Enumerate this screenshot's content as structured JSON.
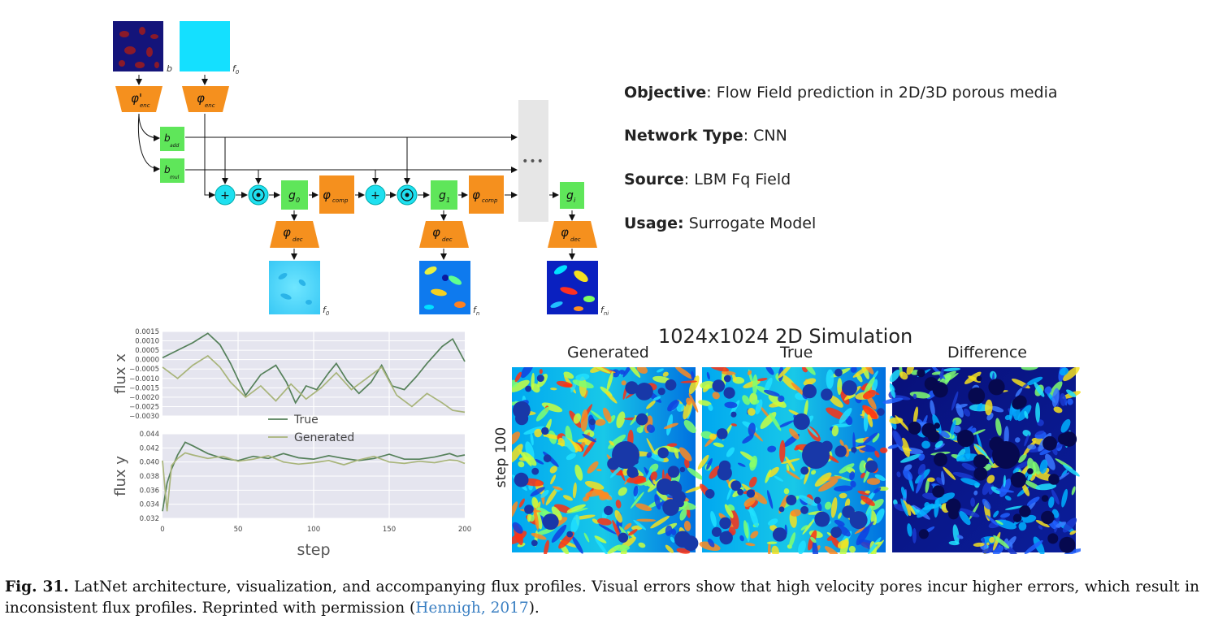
{
  "architecture": {
    "input_b_label": "b",
    "input_f0_label": "f",
    "input_f0_sub": "0",
    "encoders": [
      {
        "symbol": "φ'",
        "sub": "enc"
      },
      {
        "symbol": "φ",
        "sub": "enc"
      }
    ],
    "b_blocks": [
      {
        "symbol": "b",
        "sub": "add"
      },
      {
        "symbol": "b",
        "sub": "mul"
      }
    ],
    "g_blocks": [
      {
        "symbol": "g",
        "sub": "0"
      },
      {
        "symbol": "g",
        "sub": "1"
      },
      {
        "symbol": "g",
        "sub": "i"
      }
    ],
    "comp_blocks": [
      {
        "symbol": "φ",
        "sub": "comp"
      },
      {
        "symbol": "φ",
        "sub": "comp"
      }
    ],
    "decoders": [
      {
        "symbol": "φ",
        "sub": "dec"
      },
      {
        "symbol": "φ",
        "sub": "dec"
      },
      {
        "symbol": "φ",
        "sub": "dec"
      }
    ],
    "outputs": [
      {
        "symbol": "f",
        "sub": "0"
      },
      {
        "symbol": "f",
        "sub": "n"
      },
      {
        "symbol": "f",
        "sub": "ni"
      }
    ],
    "plus_symbol": "+",
    "mul_symbol": "⊙",
    "ellipsis": "•••",
    "colors": {
      "encoder": "#f5901e",
      "block": "#5fe65a",
      "circle": "#1ee0f0",
      "gray_panel": "#e6e6e6"
    }
  },
  "info": {
    "objective_label": "Objective",
    "objective_value": ": Flow Field prediction in 2D/3D porous media",
    "network_label": "Network Type",
    "network_value": ": CNN",
    "source_label": "Source",
    "source_value": ": LBM Fq Field",
    "usage_label": "Usage:",
    "usage_value": " Surrogate Model"
  },
  "chart_data": [
    {
      "type": "line",
      "ylabel": "flux x",
      "ylim": [
        -0.003,
        0.0015
      ],
      "yticks": [
        "0.0015",
        "0.0010",
        "0.0005",
        "0.0000",
        "−0.0005",
        "−0.0010",
        "−0.0015",
        "−0.0020",
        "−0.0025",
        "−0.0030"
      ],
      "xlim": [
        0,
        200
      ],
      "series": [
        {
          "name": "True",
          "color": "#55805a",
          "x": [
            0,
            10,
            20,
            30,
            38,
            45,
            55,
            65,
            75,
            82,
            88,
            95,
            102,
            110,
            115,
            122,
            130,
            138,
            145,
            152,
            160,
            168,
            175,
            185,
            192,
            200
          ],
          "values": [
            0.0001,
            0.0005,
            0.0009,
            0.0014,
            0.0008,
            -0.0002,
            -0.0019,
            -0.0008,
            -0.0003,
            -0.0012,
            -0.0023,
            -0.0014,
            -0.0016,
            -0.0007,
            -0.0002,
            -0.0011,
            -0.0018,
            -0.0012,
            -0.0003,
            -0.0014,
            -0.0016,
            -0.0009,
            -0.0002,
            0.0007,
            0.0011,
            -0.0001
          ]
        },
        {
          "name": "Generated",
          "color": "#a8b47a",
          "x": [
            0,
            10,
            20,
            30,
            38,
            45,
            55,
            65,
            75,
            85,
            95,
            105,
            115,
            125,
            135,
            145,
            155,
            165,
            175,
            185,
            192,
            200
          ],
          "values": [
            -0.0004,
            -0.001,
            -0.0003,
            0.0002,
            -0.0004,
            -0.0012,
            -0.002,
            -0.0014,
            -0.0022,
            -0.0013,
            -0.0021,
            -0.0015,
            -0.0007,
            -0.0016,
            -0.001,
            -0.0004,
            -0.0019,
            -0.0025,
            -0.0018,
            -0.0023,
            -0.0027,
            -0.0028
          ]
        }
      ],
      "legend": [
        "True",
        "Generated"
      ],
      "legend_placement": "bottom-center"
    },
    {
      "type": "line",
      "ylabel": "flux y",
      "xlabel": "step",
      "ylim": [
        0.032,
        0.044
      ],
      "yticks": [
        "0.044",
        "0.042",
        "0.040",
        "0.038",
        "0.036",
        "0.034",
        "0.032"
      ],
      "xlim": [
        0,
        200
      ],
      "xticks": [
        "0",
        "50",
        "100",
        "150",
        "200"
      ],
      "series": [
        {
          "name": "True",
          "color": "#55805a",
          "x": [
            0,
            3,
            6,
            10,
            15,
            20,
            30,
            40,
            50,
            60,
            70,
            80,
            90,
            100,
            110,
            120,
            130,
            140,
            150,
            160,
            170,
            180,
            190,
            195,
            200
          ],
          "values": [
            0.033,
            0.037,
            0.039,
            0.041,
            0.0428,
            0.0423,
            0.0412,
            0.0405,
            0.0402,
            0.0408,
            0.0405,
            0.0412,
            0.0406,
            0.0404,
            0.0409,
            0.0405,
            0.0402,
            0.0405,
            0.0411,
            0.0404,
            0.0404,
            0.0407,
            0.0412,
            0.0408,
            0.041
          ]
        },
        {
          "name": "Generated",
          "color": "#a8b47a",
          "x": [
            0,
            3,
            6,
            10,
            15,
            20,
            30,
            40,
            50,
            60,
            70,
            80,
            90,
            100,
            110,
            120,
            130,
            140,
            150,
            160,
            170,
            180,
            190,
            195,
            200
          ],
          "values": [
            0.0402,
            0.033,
            0.0395,
            0.0405,
            0.0413,
            0.041,
            0.0405,
            0.0408,
            0.0401,
            0.0404,
            0.0409,
            0.04,
            0.0397,
            0.0399,
            0.0402,
            0.0396,
            0.0403,
            0.0408,
            0.04,
            0.0398,
            0.0401,
            0.0399,
            0.0403,
            0.0402,
            0.0398
          ]
        }
      ]
    }
  ],
  "simulation": {
    "title": "1024x1024 2D Simulation",
    "panels": [
      "Generated",
      "True",
      "Difference"
    ],
    "row_label": "step 100"
  },
  "caption": {
    "label": "Fig. 31.",
    "text": " LatNet architecture, visualization, and accompanying flux profiles. Visual errors show that high velocity pores incur higher errors, which result in inconsistent flux profiles. Reprinted with permission (",
    "link": "Hennigh, 2017",
    "end": ")."
  }
}
